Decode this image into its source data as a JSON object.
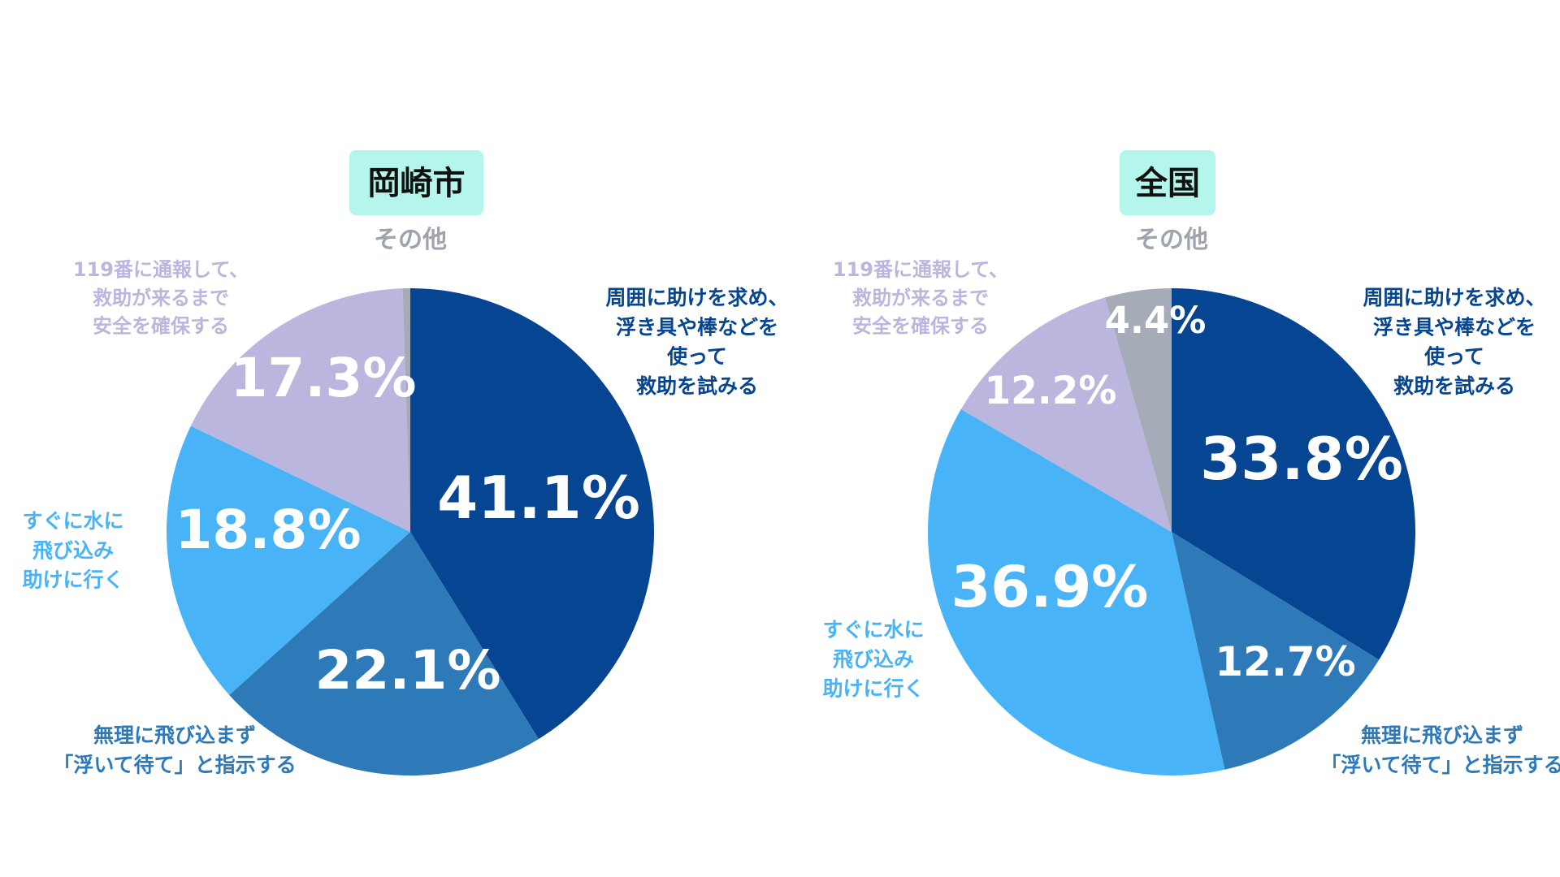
{
  "colors": {
    "title_bg": "#b4f6ec",
    "title_text": "#111111",
    "slice_rescue_tools": "#064592",
    "slice_float_wait": "#2e79b8",
    "slice_jump_in": "#49b3f8",
    "slice_call_119": "#bbb6de",
    "slice_other": "#a6abb8",
    "label_other": "#9fa3ad",
    "label_call_119": "#bbb6de"
  },
  "chart_data": [
    {
      "type": "pie",
      "title": "岡崎市",
      "start_angle_deg": 0,
      "direction": "clockwise",
      "slices": [
        {
          "key": "rescue_tools",
          "label_lines": [
            "周囲に助けを求め、",
            "浮き具や棒などを",
            "使って",
            "救助を試みる"
          ],
          "value": 41.1,
          "value_label": "41.1%"
        },
        {
          "key": "float_wait",
          "label_lines": [
            "無理に飛び込まず",
            "「浮いて待て」と指示する"
          ],
          "value": 22.1,
          "value_label": "22.1%"
        },
        {
          "key": "jump_in",
          "label_lines": [
            "すぐに水に",
            "飛び込み",
            "助けに行く"
          ],
          "value": 18.8,
          "value_label": "18.8%"
        },
        {
          "key": "call_119",
          "label_lines": [
            "119番に通報して、",
            "救助が来るまで",
            "安全を確保する"
          ],
          "value": 17.3,
          "value_label": "17.3%"
        },
        {
          "key": "other",
          "label_lines": [
            "その他"
          ],
          "value": 0.5,
          "value_label": ""
        }
      ]
    },
    {
      "type": "pie",
      "title": "全国",
      "start_angle_deg": 0,
      "direction": "clockwise",
      "slices": [
        {
          "key": "rescue_tools",
          "label_lines": [
            "周囲に助けを求め、",
            "浮き具や棒などを",
            "使って",
            "救助を試みる"
          ],
          "value": 33.8,
          "value_label": "33.8%"
        },
        {
          "key": "float_wait",
          "label_lines": [
            "無理に飛び込まず",
            "「浮いて待て」と指示する"
          ],
          "value": 12.7,
          "value_label": "12.7%"
        },
        {
          "key": "jump_in",
          "label_lines": [
            "すぐに水に",
            "飛び込み",
            "助けに行く"
          ],
          "value": 36.9,
          "value_label": "36.9%"
        },
        {
          "key": "call_119",
          "label_lines": [
            "119番に通報して、",
            "救助が来るまで",
            "安全を確保する"
          ],
          "value": 12.2,
          "value_label": "12.2%"
        },
        {
          "key": "other",
          "label_lines": [
            "その他"
          ],
          "value": 4.4,
          "value_label": "4.4%"
        }
      ]
    }
  ]
}
